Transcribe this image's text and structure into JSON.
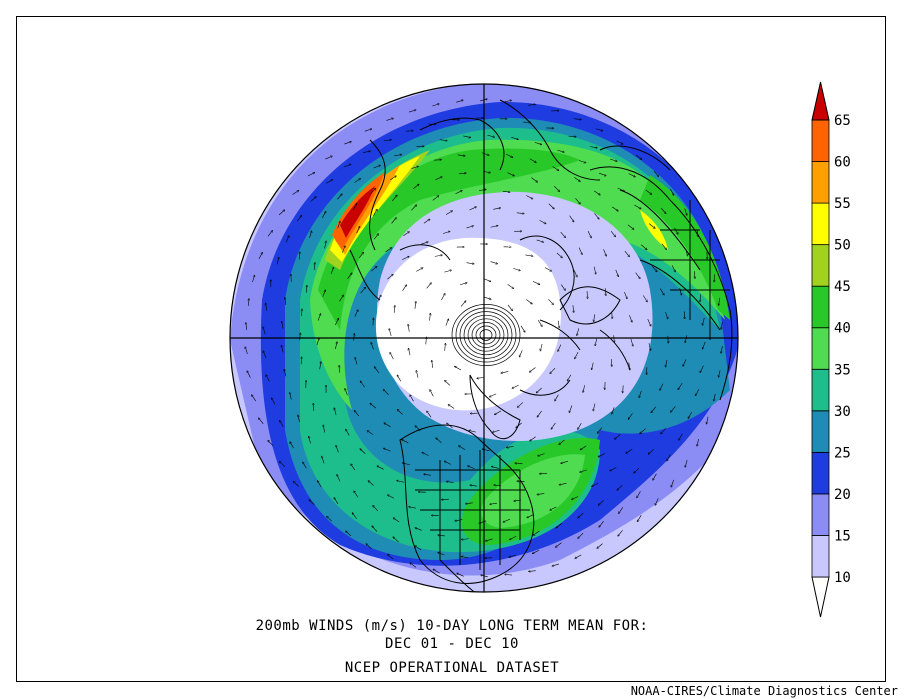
{
  "caption": {
    "line1": "200mb WINDS (m/s)  10-DAY LONG TERM MEAN FOR:",
    "line2": "DEC 01 - DEC 10",
    "line3": "NCEP OPERATIONAL DATASET"
  },
  "credit": "NOAA-CIRES/Climate Diagnostics Center",
  "colorbar": {
    "levels": [
      10,
      15,
      20,
      25,
      30,
      35,
      40,
      45,
      50,
      55,
      60,
      65
    ],
    "labels": [
      "10",
      "15",
      "20",
      "25",
      "30",
      "35",
      "40",
      "45",
      "50",
      "55",
      "60",
      "65"
    ],
    "colors": [
      "#ffffff",
      "#c8c8ff",
      "#8c8cf5",
      "#1e3ce0",
      "#1e8cb4",
      "#1ebe8c",
      "#50dc50",
      "#28c828",
      "#a0d21e",
      "#ffff00",
      "#ffa000",
      "#ff6400",
      "#c80000"
    ]
  },
  "map": {
    "projection": "north-polar-stereographic",
    "colors": {
      "white": "#ffffff",
      "lav": "#c8c8ff",
      "med": "#8c8cf5",
      "blue": "#1e3ce0",
      "teal": "#1e8cb4",
      "sea": "#1ebe8c",
      "lgreen": "#50dc50",
      "green": "#28c828",
      "ygreen": "#a0d21e",
      "yellow": "#ffff00",
      "orange": "#ffa000",
      "dorange": "#ff6400",
      "red": "#c80000"
    }
  }
}
